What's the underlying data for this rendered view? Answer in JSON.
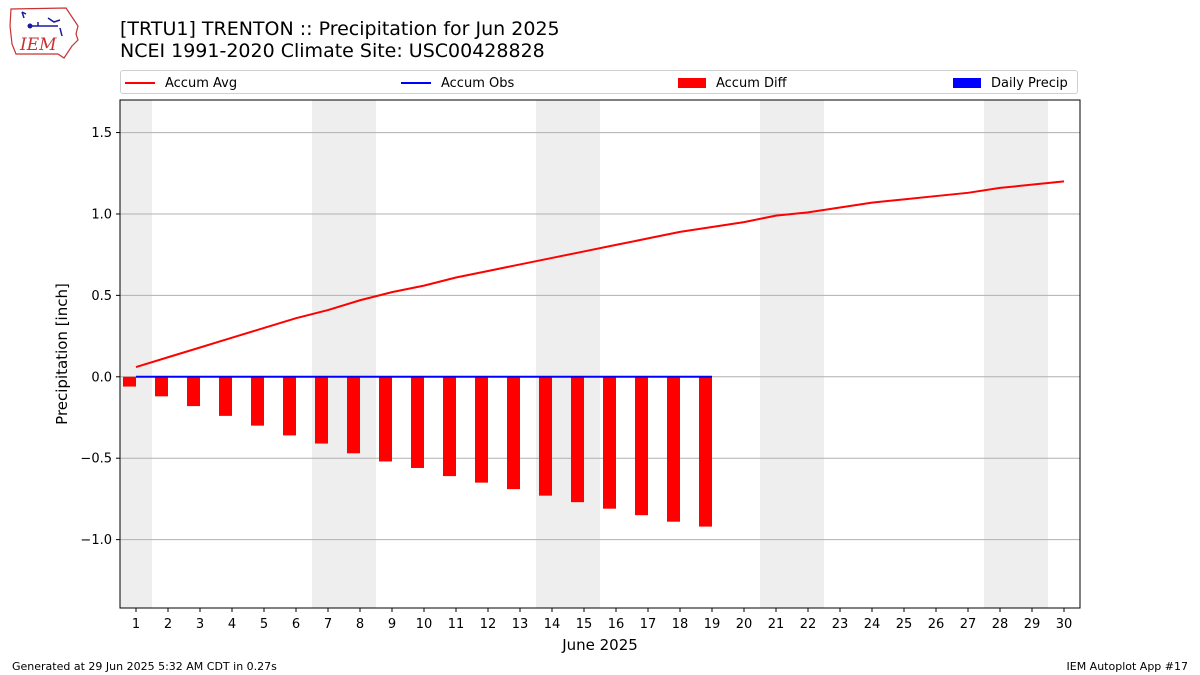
{
  "header": {
    "title_line1": "[TRTU1] TRENTON :: Precipitation for Jun 2025",
    "title_line2": "NCEI 1991-2020 Climate Site: USC00428828",
    "logo_text": "IEM"
  },
  "legend": {
    "items": [
      {
        "label": "Accum Avg",
        "kind": "line",
        "color": "#ff0000"
      },
      {
        "label": "Accum Obs",
        "kind": "line",
        "color": "#0000ff"
      },
      {
        "label": "Accum Diff",
        "kind": "box",
        "color": "#ff0000"
      },
      {
        "label": "Daily Precip",
        "kind": "box",
        "color": "#0000ff"
      }
    ]
  },
  "footer": {
    "left": "Generated at 29 Jun 2025 5:32 AM CDT in 0.27s",
    "right": "IEM Autoplot App #17"
  },
  "chart_data": {
    "type": "bar",
    "xlabel": "June 2025",
    "ylabel": "Precipitation [inch]",
    "x_ticks": [
      "1",
      "2",
      "3",
      "4",
      "5",
      "6",
      "7",
      "8",
      "9",
      "10",
      "11",
      "12",
      "13",
      "14",
      "15",
      "16",
      "17",
      "18",
      "19",
      "20",
      "21",
      "22",
      "23",
      "24",
      "25",
      "26",
      "27",
      "28",
      "29",
      "30"
    ],
    "ylim": [
      -1.42,
      1.7
    ],
    "y_ticks": [
      -1.0,
      -0.5,
      0.0,
      0.5,
      1.0,
      1.5
    ],
    "y_tick_labels": [
      "−1.0",
      "−0.5",
      "0.0",
      "0.5",
      "1.0",
      "1.5"
    ],
    "grid": "horizontal",
    "weekend_shading_days": [
      1,
      7,
      8,
      14,
      15,
      21,
      22,
      28,
      29
    ],
    "shading_color": "#eeeeee",
    "series": [
      {
        "name": "Accum Avg",
        "kind": "line",
        "color": "#ff0000",
        "x": [
          1,
          2,
          3,
          4,
          5,
          6,
          7,
          8,
          9,
          10,
          11,
          12,
          13,
          14,
          15,
          16,
          17,
          18,
          19,
          20,
          21,
          22,
          23,
          24,
          25,
          26,
          27,
          28,
          29,
          30
        ],
        "values": [
          0.06,
          0.12,
          0.18,
          0.24,
          0.3,
          0.36,
          0.41,
          0.47,
          0.52,
          0.56,
          0.61,
          0.65,
          0.69,
          0.73,
          0.77,
          0.81,
          0.85,
          0.89,
          0.92,
          0.95,
          0.99,
          1.01,
          1.04,
          1.07,
          1.09,
          1.11,
          1.13,
          1.16,
          1.18,
          1.2
        ]
      },
      {
        "name": "Accum Obs",
        "kind": "line",
        "color": "#0000ff",
        "x": [
          1,
          2,
          3,
          4,
          5,
          6,
          7,
          8,
          9,
          10,
          11,
          12,
          13,
          14,
          15,
          16,
          17,
          18,
          19
        ],
        "values": [
          0,
          0,
          0,
          0,
          0,
          0,
          0,
          0,
          0,
          0,
          0,
          0,
          0,
          0,
          0,
          0,
          0,
          0,
          0
        ]
      },
      {
        "name": "Accum Diff",
        "kind": "bar",
        "color": "#ff0000",
        "x": [
          1,
          2,
          3,
          4,
          5,
          6,
          7,
          8,
          9,
          10,
          11,
          12,
          13,
          14,
          15,
          16,
          17,
          18,
          19
        ],
        "values": [
          -0.06,
          -0.12,
          -0.18,
          -0.24,
          -0.3,
          -0.36,
          -0.41,
          -0.47,
          -0.52,
          -0.56,
          -0.61,
          -0.65,
          -0.69,
          -0.73,
          -0.77,
          -0.81,
          -0.85,
          -0.89,
          -0.92
        ]
      },
      {
        "name": "Daily Precip",
        "kind": "bar",
        "color": "#0000ff",
        "x": [
          1,
          2,
          3,
          4,
          5,
          6,
          7,
          8,
          9,
          10,
          11,
          12,
          13,
          14,
          15,
          16,
          17,
          18,
          19
        ],
        "values": [
          0,
          0,
          0,
          0,
          0,
          0,
          0,
          0,
          0,
          0,
          0,
          0,
          0,
          0,
          0,
          0,
          0,
          0,
          0
        ]
      }
    ]
  }
}
